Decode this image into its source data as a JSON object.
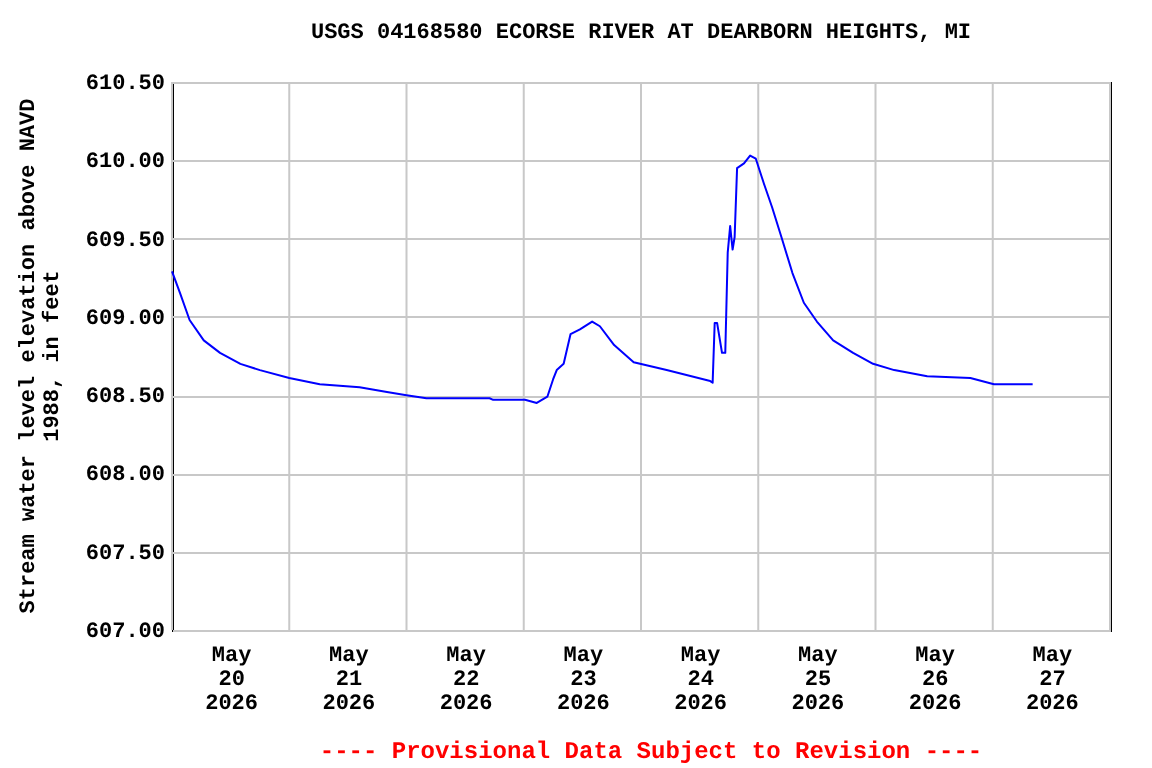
{
  "chart_data": {
    "type": "line",
    "title": "USGS 04168580 ECORSE RIVER AT DEARBORN HEIGHTS, MI",
    "ylabel": "Stream water level elevation above NAVD 1988, in feet",
    "annotations": [
      "---- Provisional Data Subject to Revision ----"
    ],
    "x": [
      "2026-05-20T00:00",
      "2026-05-20T01:40",
      "2026-05-20T03:36",
      "2026-05-20T06:30",
      "2026-05-20T09:50",
      "2026-05-20T14:00",
      "2026-05-20T18:00",
      "2026-05-21T00:00",
      "2026-05-21T06:15",
      "2026-05-21T14:24",
      "2026-05-21T20:00",
      "2026-05-22T00:00",
      "2026-05-22T04:05",
      "2026-05-22T17:00",
      "2026-05-22T17:45",
      "2026-05-23T00:15",
      "2026-05-23T02:40",
      "2026-05-23T04:50",
      "2026-05-23T06:00",
      "2026-05-23T06:45",
      "2026-05-23T08:10",
      "2026-05-23T09:35",
      "2026-05-23T11:30",
      "2026-05-23T14:00",
      "2026-05-23T15:35",
      "2026-05-23T18:30",
      "2026-05-23T22:30",
      "2026-05-24T05:15",
      "2026-05-24T14:10",
      "2026-05-24T14:40",
      "2026-05-24T15:05",
      "2026-05-24T15:35",
      "2026-05-24T16:35",
      "2026-05-24T17:15",
      "2026-05-24T17:45",
      "2026-05-24T18:15",
      "2026-05-24T18:45",
      "2026-05-24T19:10",
      "2026-05-24T19:40",
      "2026-05-24T21:05",
      "2026-05-24T22:20",
      "2026-05-24T23:30",
      "2026-05-25T01:10",
      "2026-05-25T02:50",
      "2026-05-25T04:50",
      "2026-05-25T07:00",
      "2026-05-25T09:20",
      "2026-05-25T12:00",
      "2026-05-25T15:20",
      "2026-05-25T19:25",
      "2026-05-25T23:30",
      "2026-05-26T03:50",
      "2026-05-26T10:35",
      "2026-05-26T19:25",
      "2026-05-27T00:15",
      "2026-05-27T08:10"
    ],
    "series": [
      {
        "color": "#0000ff",
        "values": [
          609.29,
          609.15,
          608.98,
          608.85,
          608.77,
          608.7,
          608.66,
          608.61,
          608.57,
          608.55,
          608.52,
          608.5,
          608.48,
          608.48,
          608.47,
          608.47,
          608.45,
          608.49,
          608.6,
          608.66,
          608.7,
          608.89,
          608.92,
          608.97,
          608.94,
          608.82,
          608.71,
          608.66,
          608.59,
          608.58,
          608.96,
          608.96,
          608.77,
          608.77,
          609.41,
          609.58,
          609.43,
          609.51,
          609.95,
          609.98,
          610.03,
          610.01,
          609.85,
          609.7,
          609.5,
          609.28,
          609.09,
          608.97,
          608.85,
          608.77,
          608.7,
          608.66,
          608.62,
          608.61,
          608.57,
          608.57
        ]
      }
    ],
    "xlim": [
      "2026-05-20T00:00",
      "2026-05-28T00:00"
    ],
    "xticks": [
      {
        "value": "2026-05-20T00:00",
        "label": null
      },
      {
        "value": "2026-05-21T00:00",
        "label": null
      },
      {
        "value": "2026-05-22T00:00",
        "label": null
      },
      {
        "value": "2026-05-23T00:00",
        "label": null
      },
      {
        "value": "2026-05-24T00:00",
        "label": null
      },
      {
        "value": "2026-05-25T00:00",
        "label": null
      },
      {
        "value": "2026-05-26T00:00",
        "label": null
      },
      {
        "value": "2026-05-27T00:00",
        "label": null
      },
      {
        "value": "2026-05-28T00:00",
        "label": null
      },
      {
        "value": "2026-05-20T12:00",
        "label": "May\n20\n2026"
      },
      {
        "value": "2026-05-21T12:00",
        "label": "May\n21\n2026"
      },
      {
        "value": "2026-05-22T12:00",
        "label": "May\n22\n2026"
      },
      {
        "value": "2026-05-23T12:00",
        "label": "May\n23\n2026"
      },
      {
        "value": "2026-05-24T12:00",
        "label": "May\n24\n2026"
      },
      {
        "value": "2026-05-25T12:00",
        "label": "May\n25\n2026"
      },
      {
        "value": "2026-05-26T12:00",
        "label": "May\n26\n2026"
      },
      {
        "value": "2026-05-27T12:00",
        "label": "May\n27\n2026"
      }
    ],
    "ylim": [
      607.0,
      610.5
    ],
    "yticks": [
      {
        "value": 607.0,
        "label": "607.00"
      },
      {
        "value": 607.5,
        "label": "607.50"
      },
      {
        "value": 608.0,
        "label": "608.00"
      },
      {
        "value": 608.5,
        "label": "608.50"
      },
      {
        "value": 609.0,
        "label": "609.00"
      },
      {
        "value": 609.5,
        "label": "609.50"
      },
      {
        "value": 610.0,
        "label": "610.00"
      },
      {
        "value": 610.5,
        "label": "610.50"
      }
    ],
    "grid": true,
    "marker": "none",
    "line_style": "solid"
  }
}
